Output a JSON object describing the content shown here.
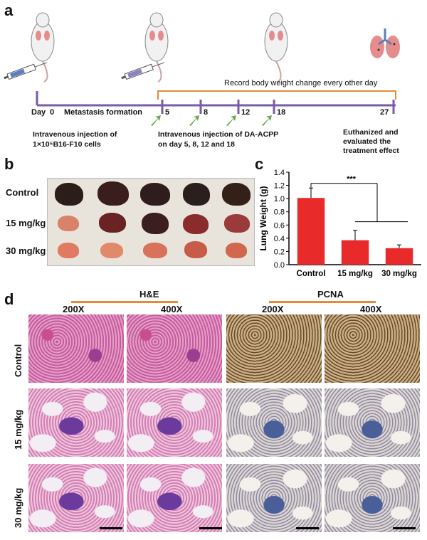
{
  "panel_labels": {
    "a": "a",
    "b": "b",
    "c": "c",
    "d": "d"
  },
  "panel_a": {
    "record_text": "Record body weight change every other day",
    "day_prefix": "Day",
    "days": [
      "0",
      "5",
      "8",
      "12",
      "18",
      "27"
    ],
    "metastasis": "Metastasis formation",
    "injection_line1": "Intravenous injection of",
    "injection_line2": "1×10⁵B16-F10 cells",
    "treatment_line1": "Intravenous injection of DA-ACPP",
    "treatment_line2": "on day 5, 8, 12 and 18",
    "end_line1": "Euthanized and",
    "end_line2": "evaluated the",
    "end_line3": "treatment effect"
  },
  "panel_b": {
    "rows": [
      "Control",
      "15 mg/kg",
      "30 mg/kg"
    ]
  },
  "panel_d": {
    "he_title": "H&E",
    "pcna_title": "PCNA",
    "magnifications": [
      "200X",
      "400X",
      "200X",
      "400X"
    ],
    "rows": [
      "Control",
      "15 mg/kg",
      "30 mg/kg"
    ]
  },
  "chart_data": {
    "type": "bar",
    "categories": [
      "Control",
      "15 mg/kg",
      "30 mg/kg"
    ],
    "values": [
      1.01,
      0.37,
      0.25
    ],
    "errors": [
      0.15,
      0.15,
      0.05
    ],
    "ylabel": "Lung Weight (g)",
    "ylim": [
      0,
      1.4
    ],
    "yticks": [
      "0.0",
      "0.2",
      "0.4",
      "0.6",
      "0.8",
      "1.0",
      "1.2",
      "1.4"
    ],
    "significance": "***",
    "bar_color": "#e82a2a"
  }
}
